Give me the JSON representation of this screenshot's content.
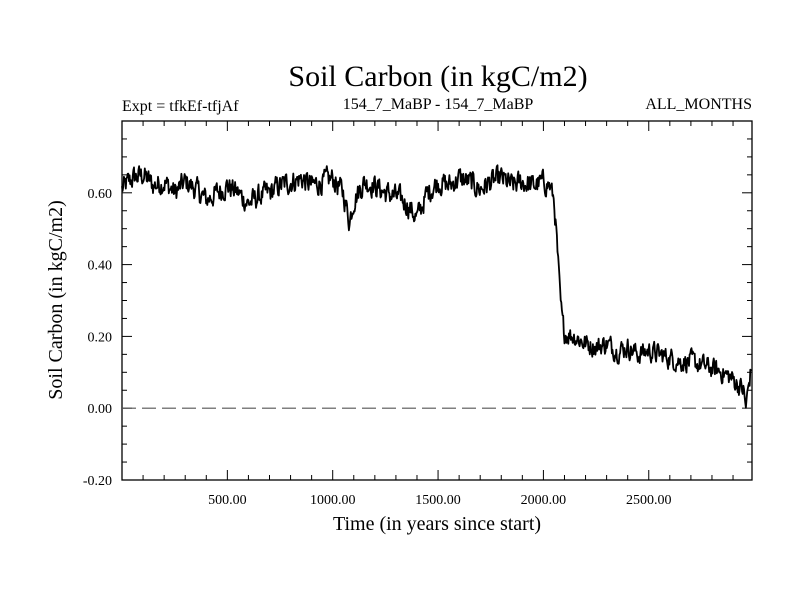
{
  "chart_data": {
    "type": "line",
    "title": "Soil Carbon (in kgC/m2)",
    "subtitle_left": "Expt = tfkEf-tfjAf",
    "subtitle_center": "154_7_MaBP - 154_7_MaBP",
    "subtitle_right": "ALL_MONTHS",
    "xlabel": "Time (in years since start)",
    "ylabel": "Soil Carbon (in kgC/m2)",
    "xlim": [
      0,
      2990
    ],
    "ylim": [
      -0.2,
      0.8
    ],
    "x_ticks": [
      500,
      1000,
      1500,
      2000,
      2500
    ],
    "x_tick_labels": [
      "500.00",
      "1000.00",
      "1500.00",
      "2000.00",
      "2500.00"
    ],
    "y_ticks": [
      -0.2,
      0.0,
      0.2,
      0.4,
      0.6
    ],
    "y_tick_labels": [
      "-0.20",
      "0.00",
      "0.20",
      "0.40",
      "0.60"
    ],
    "reference_line": {
      "y": 0.0,
      "style": "dashed"
    },
    "line_color": "#000000",
    "series": [
      {
        "x": [
          0,
          50,
          100,
          150,
          200,
          250,
          300,
          350,
          400,
          450,
          500,
          550,
          600,
          650,
          700,
          750,
          800,
          850,
          900,
          950,
          1000,
          1050,
          1080,
          1100,
          1150,
          1200,
          1250,
          1300,
          1350,
          1400,
          1450,
          1500,
          1550,
          1600,
          1650,
          1700,
          1750,
          1800,
          1850,
          1900,
          1950,
          2000,
          2030,
          2050,
          2060,
          2070,
          2080,
          2090,
          2100,
          2150,
          2200,
          2250,
          2300,
          2350,
          2400,
          2450,
          2500,
          2550,
          2600,
          2650,
          2700,
          2750,
          2800,
          2850,
          2900,
          2950,
          2960,
          2990
        ],
        "values": [
          0.61,
          0.64,
          0.65,
          0.62,
          0.63,
          0.6,
          0.63,
          0.61,
          0.58,
          0.6,
          0.62,
          0.6,
          0.57,
          0.59,
          0.6,
          0.62,
          0.63,
          0.64,
          0.62,
          0.63,
          0.64,
          0.6,
          0.52,
          0.58,
          0.63,
          0.62,
          0.6,
          0.59,
          0.57,
          0.53,
          0.6,
          0.63,
          0.62,
          0.64,
          0.63,
          0.61,
          0.63,
          0.64,
          0.62,
          0.63,
          0.62,
          0.63,
          0.62,
          0.58,
          0.5,
          0.4,
          0.3,
          0.24,
          0.21,
          0.2,
          0.18,
          0.17,
          0.18,
          0.16,
          0.17,
          0.15,
          0.16,
          0.15,
          0.14,
          0.13,
          0.13,
          0.12,
          0.11,
          0.1,
          0.08,
          0.05,
          0.0,
          0.13
        ]
      }
    ]
  }
}
